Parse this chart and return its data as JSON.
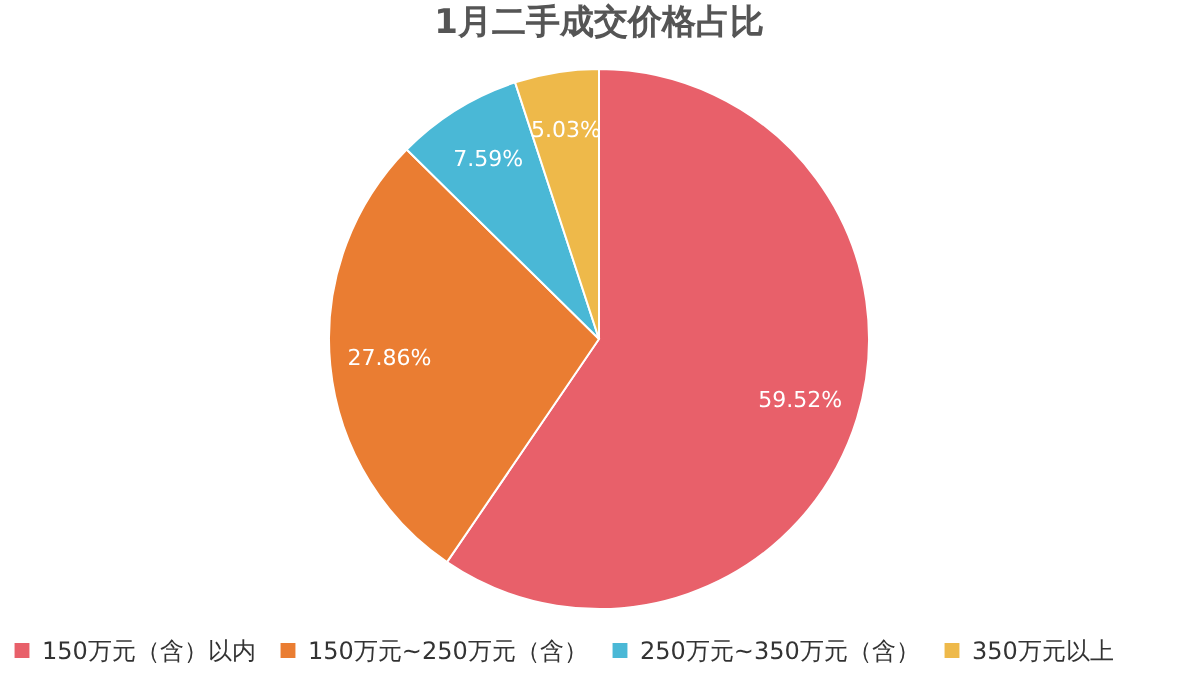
{
  "chart_data": {
    "type": "pie",
    "title": "1月二手成交价格占比",
    "categories": [
      "150万元（含）以内",
      "150万元~250万元（含）",
      "250万元~350万元（含）",
      "350万元以上"
    ],
    "values": [
      59.52,
      27.86,
      7.59,
      5.03
    ],
    "colors": [
      "#e8606a",
      "#ea7d32",
      "#4ab8d6",
      "#eeb94a"
    ],
    "value_labels": [
      "59.52%",
      "27.86%",
      "7.59%",
      "5.03%"
    ],
    "legend": "bottom"
  }
}
